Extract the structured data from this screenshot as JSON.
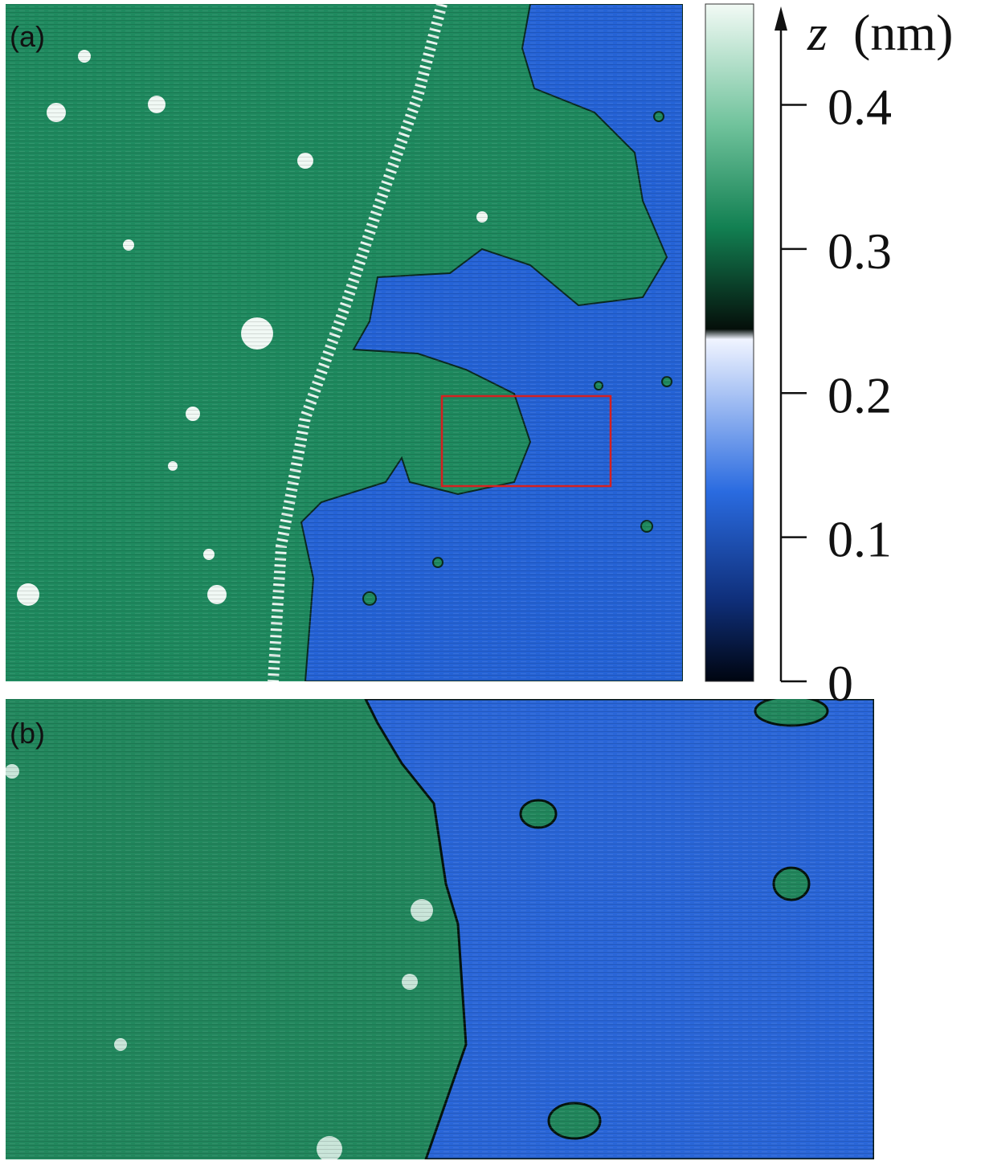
{
  "panels": [
    {
      "label": "(a)"
    },
    {
      "label": "(b)"
    }
  ],
  "colorbar": {
    "variable": "z",
    "unit": "(nm)",
    "lim": [
      0,
      0.47
    ],
    "ticks": [
      0,
      0.1,
      0.2,
      0.3,
      0.4
    ]
  }
}
